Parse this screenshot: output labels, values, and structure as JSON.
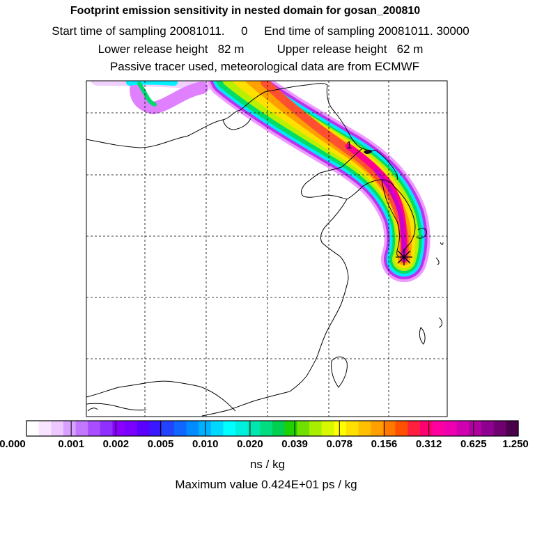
{
  "header": {
    "title": "Footprint emission sensitivity in nested domain for gosan_200810",
    "sampling": "Start time of sampling 20081011.     0     End time of sampling 20081011. 30000",
    "release": "Lower release height   82 m          Upper release height   62 m",
    "tracer": "Passive tracer used, meteorological data are from ECMWF"
  },
  "map": {
    "contour_label": "1",
    "receptor_marker": "star-icon"
  },
  "colorbar": {
    "ticks": [
      "0.000",
      "0.001",
      "0.002",
      "0.005",
      "0.010",
      "0.020",
      "0.039",
      "0.078",
      "0.156",
      "0.312",
      "0.625",
      "1.250"
    ],
    "colors": [
      "#ffffff",
      "#f8e4ff",
      "#ecc8ff",
      "#d9a0ff",
      "#c277ff",
      "#a84dff",
      "#9030ff",
      "#8a00ff",
      "#7a00ff",
      "#5a00ff",
      "#3a18ff",
      "#2244ff",
      "#1066ff",
      "#008cff",
      "#00b0ff",
      "#00d8ff",
      "#00ffff",
      "#00f0e0",
      "#00e6b0",
      "#00dc80",
      "#00d050",
      "#20d000",
      "#70e000",
      "#a8ee00",
      "#d8f800",
      "#ffff00",
      "#ffe000",
      "#ffc000",
      "#ffa000",
      "#ff7800",
      "#ff5000",
      "#ff2040",
      "#ff0070",
      "#ff00a0",
      "#ee00b0",
      "#d000b0",
      "#b000a0",
      "#900090",
      "#700070",
      "#4a004a"
    ],
    "units": "ns / kg",
    "maximum": "Maximum value  0.424E+01 ps / kg"
  }
}
